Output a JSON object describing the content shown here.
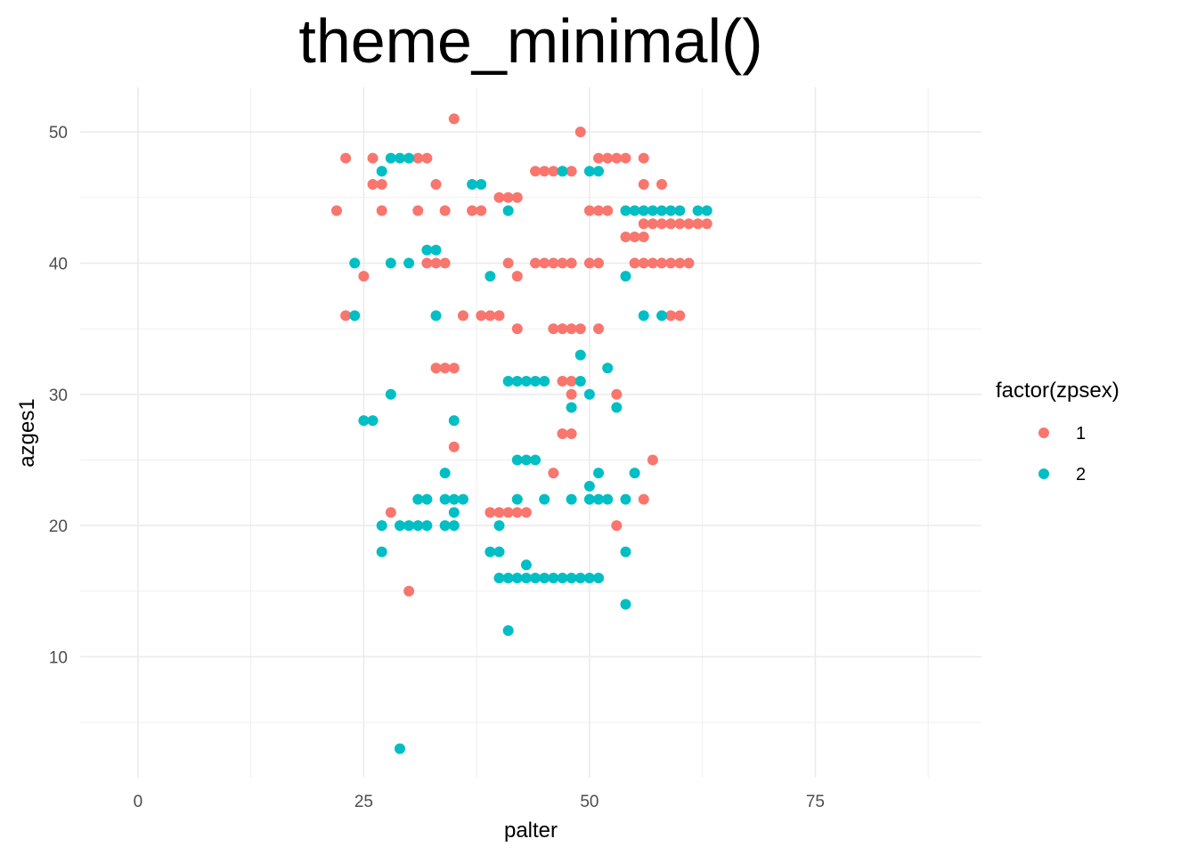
{
  "chart_data": {
    "type": "scatter",
    "title": "theme_minimal()",
    "xlabel": "palter",
    "ylabel": "azges1",
    "xlim": [
      -6.4,
      93.4
    ],
    "ylim": [
      0.8,
      53.4
    ],
    "x_ticks": [
      0,
      25,
      50,
      75
    ],
    "y_ticks": [
      10,
      20,
      30,
      40,
      50
    ],
    "grid": true,
    "legend": {
      "title": "factor(zpsex)",
      "position": "right"
    },
    "series": [
      {
        "name": "1",
        "color": "#F8766D",
        "points": [
          [
            23,
            48
          ],
          [
            26,
            48
          ],
          [
            31,
            48
          ],
          [
            32,
            48
          ],
          [
            26,
            46
          ],
          [
            27,
            46
          ],
          [
            33,
            46
          ],
          [
            22,
            44
          ],
          [
            27,
            44
          ],
          [
            31,
            44
          ],
          [
            34,
            44
          ],
          [
            35,
            51
          ],
          [
            49,
            50
          ],
          [
            38,
            44
          ],
          [
            37,
            44
          ],
          [
            40,
            45
          ],
          [
            41,
            45
          ],
          [
            42,
            45
          ],
          [
            44,
            47
          ],
          [
            45,
            47
          ],
          [
            46,
            47
          ],
          [
            47,
            47
          ],
          [
            48,
            47
          ],
          [
            51,
            48
          ],
          [
            52,
            48
          ],
          [
            53,
            48
          ],
          [
            54,
            48
          ],
          [
            56,
            48
          ],
          [
            50,
            44
          ],
          [
            51,
            44
          ],
          [
            52,
            44
          ],
          [
            56,
            46
          ],
          [
            58,
            46
          ],
          [
            54,
            42
          ],
          [
            55,
            42
          ],
          [
            56,
            42
          ],
          [
            56,
            43
          ],
          [
            57,
            43
          ],
          [
            58,
            43
          ],
          [
            59,
            43
          ],
          [
            60,
            43
          ],
          [
            61,
            43
          ],
          [
            62,
            43
          ],
          [
            63,
            43
          ],
          [
            32,
            40
          ],
          [
            33,
            40
          ],
          [
            34,
            40
          ],
          [
            41,
            40
          ],
          [
            44,
            40
          ],
          [
            45,
            40
          ],
          [
            46,
            40
          ],
          [
            47,
            40
          ],
          [
            48,
            40
          ],
          [
            50,
            40
          ],
          [
            51,
            40
          ],
          [
            55,
            40
          ],
          [
            56,
            40
          ],
          [
            57,
            40
          ],
          [
            58,
            40
          ],
          [
            59,
            40
          ],
          [
            60,
            40
          ],
          [
            61,
            40
          ],
          [
            25,
            39
          ],
          [
            42,
            39
          ],
          [
            23,
            36
          ],
          [
            36,
            36
          ],
          [
            38,
            36
          ],
          [
            39,
            36
          ],
          [
            40,
            36
          ],
          [
            59,
            36
          ],
          [
            60,
            36
          ],
          [
            42,
            35
          ],
          [
            46,
            35
          ],
          [
            47,
            35
          ],
          [
            48,
            35
          ],
          [
            49,
            35
          ],
          [
            51,
            35
          ],
          [
            33,
            32
          ],
          [
            34,
            32
          ],
          [
            35,
            32
          ],
          [
            47,
            31
          ],
          [
            48,
            31
          ],
          [
            48,
            30
          ],
          [
            53,
            30
          ],
          [
            47,
            27
          ],
          [
            48,
            27
          ],
          [
            35,
            26
          ],
          [
            46,
            24
          ],
          [
            57,
            25
          ],
          [
            28,
            21
          ],
          [
            39,
            21
          ],
          [
            40,
            21
          ],
          [
            41,
            21
          ],
          [
            42,
            21
          ],
          [
            43,
            21
          ],
          [
            56,
            22
          ],
          [
            53,
            20
          ],
          [
            30,
            15
          ]
        ]
      },
      {
        "name": "2",
        "color": "#00BFC4",
        "points": [
          [
            28,
            48
          ],
          [
            29,
            48
          ],
          [
            30,
            48
          ],
          [
            27,
            47
          ],
          [
            37,
            46
          ],
          [
            38,
            46
          ],
          [
            47,
            47
          ],
          [
            50,
            47
          ],
          [
            51,
            47
          ],
          [
            41,
            44
          ],
          [
            54,
            44
          ],
          [
            55,
            44
          ],
          [
            56,
            44
          ],
          [
            57,
            44
          ],
          [
            58,
            44
          ],
          [
            59,
            44
          ],
          [
            60,
            44
          ],
          [
            62,
            44
          ],
          [
            63,
            44
          ],
          [
            24,
            40
          ],
          [
            28,
            40
          ],
          [
            30,
            40
          ],
          [
            32,
            41
          ],
          [
            33,
            41
          ],
          [
            39,
            39
          ],
          [
            54,
            39
          ],
          [
            24,
            36
          ],
          [
            33,
            36
          ],
          [
            56,
            36
          ],
          [
            58,
            36
          ],
          [
            41,
            31
          ],
          [
            42,
            31
          ],
          [
            43,
            31
          ],
          [
            44,
            31
          ],
          [
            45,
            31
          ],
          [
            49,
            31
          ],
          [
            49,
            33
          ],
          [
            52,
            32
          ],
          [
            28,
            30
          ],
          [
            50,
            30
          ],
          [
            48,
            29
          ],
          [
            53,
            29
          ],
          [
            25,
            28
          ],
          [
            26,
            28
          ],
          [
            35,
            28
          ],
          [
            42,
            25
          ],
          [
            43,
            25
          ],
          [
            44,
            25
          ],
          [
            34,
            24
          ],
          [
            51,
            24
          ],
          [
            55,
            24
          ],
          [
            50,
            23
          ],
          [
            31,
            22
          ],
          [
            32,
            22
          ],
          [
            34,
            22
          ],
          [
            35,
            22
          ],
          [
            36,
            22
          ],
          [
            42,
            22
          ],
          [
            45,
            22
          ],
          [
            48,
            22
          ],
          [
            50,
            22
          ],
          [
            51,
            22
          ],
          [
            52,
            22
          ],
          [
            54,
            22
          ],
          [
            35,
            21
          ],
          [
            27,
            20
          ],
          [
            29,
            20
          ],
          [
            30,
            20
          ],
          [
            31,
            20
          ],
          [
            32,
            20
          ],
          [
            34,
            20
          ],
          [
            35,
            20
          ],
          [
            40,
            20
          ],
          [
            27,
            18
          ],
          [
            39,
            18
          ],
          [
            40,
            18
          ],
          [
            54,
            18
          ],
          [
            43,
            17
          ],
          [
            40,
            16
          ],
          [
            41,
            16
          ],
          [
            42,
            16
          ],
          [
            43,
            16
          ],
          [
            44,
            16
          ],
          [
            45,
            16
          ],
          [
            46,
            16
          ],
          [
            47,
            16
          ],
          [
            48,
            16
          ],
          [
            49,
            16
          ],
          [
            50,
            16
          ],
          [
            51,
            16
          ],
          [
            54,
            14
          ],
          [
            41,
            12
          ],
          [
            29,
            3
          ]
        ]
      }
    ]
  }
}
